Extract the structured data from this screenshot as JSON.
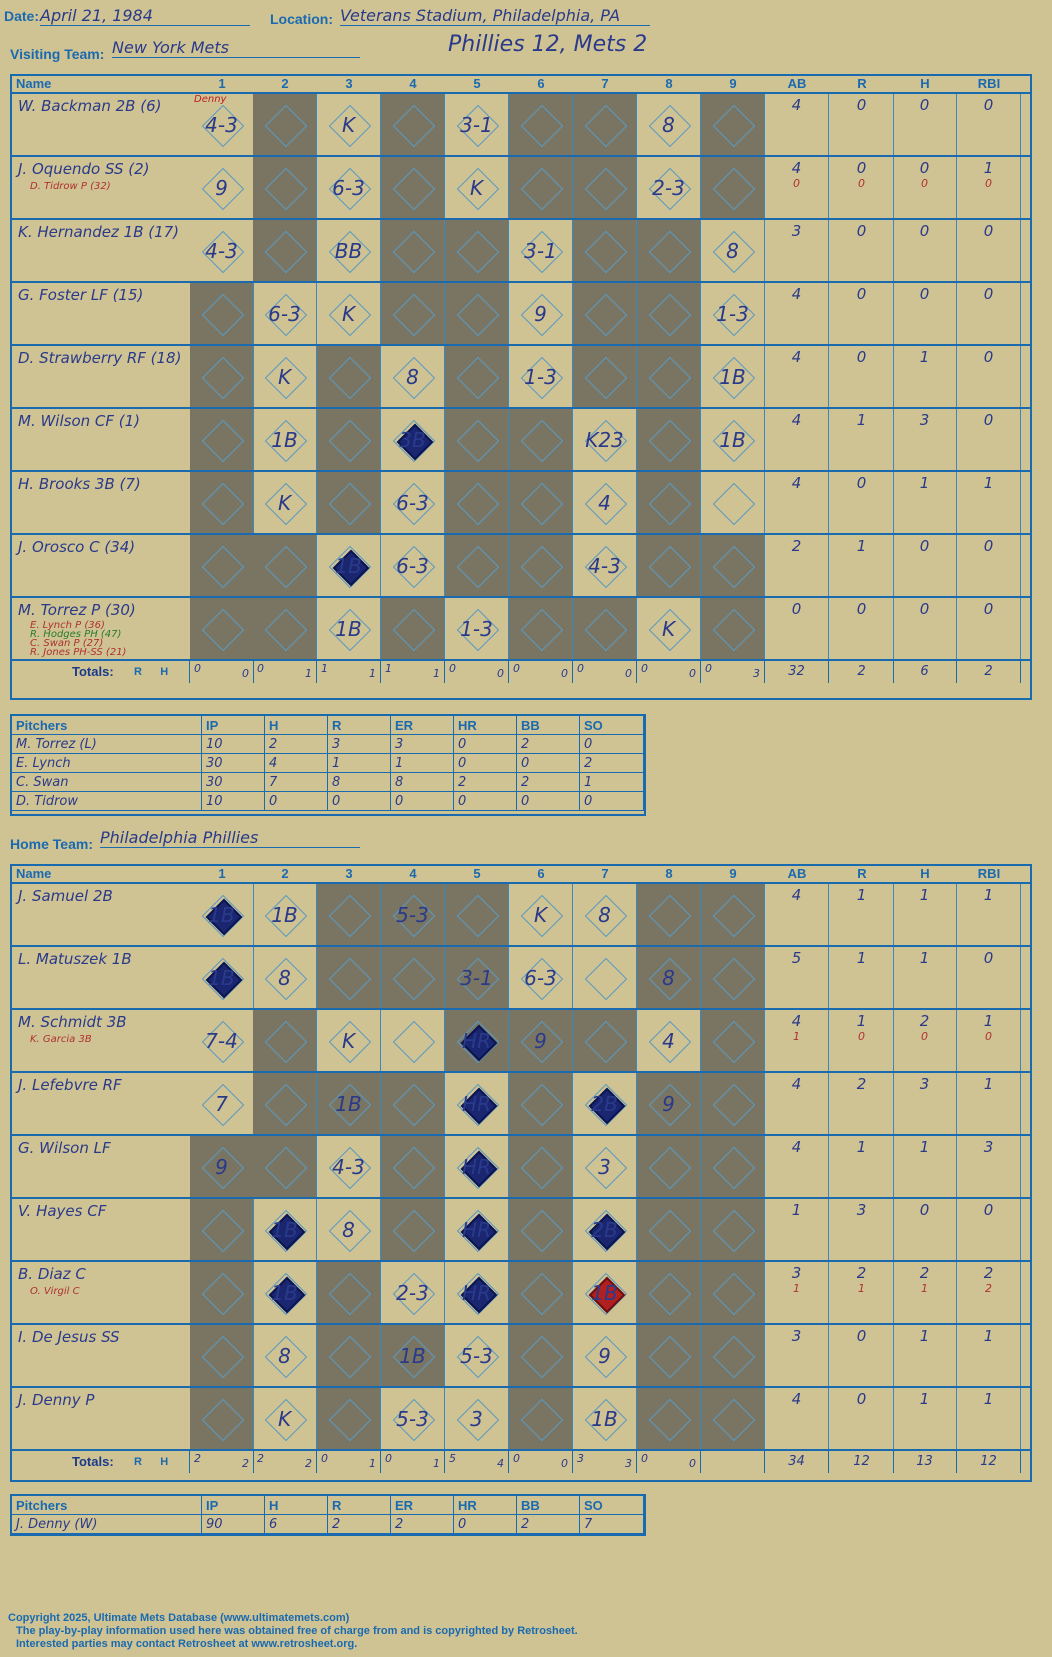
{
  "header": {
    "date_label": "Date:",
    "date": "April 21, 1984",
    "location_label": "Location:",
    "location": "Veterans Stadium, Philadelphia, PA",
    "visiting_label": "Visiting Team:",
    "visiting_team": "New York Mets",
    "home_label": "Home Team:",
    "home_team": "Philadelphia Phillies",
    "score": "Phillies 12, Mets 2"
  },
  "columns": {
    "name": "Name",
    "innings": [
      "1",
      "2",
      "3",
      "4",
      "5",
      "6",
      "7",
      "8",
      "9"
    ],
    "stats": [
      "AB",
      "R",
      "H",
      "RBI"
    ],
    "totals": "Totals:",
    "rh": "R      H"
  },
  "visitors": [
    {
      "name": "W. Backman 2B (6)",
      "cells": [
        "4-3",
        "",
        "K",
        "",
        "3-1",
        "",
        "",
        "8",
        ""
      ],
      "stats": [
        "4",
        "0",
        "0",
        "0"
      ],
      "notes": {
        "0": "Denny"
      }
    },
    {
      "name": "J. Oquendo SS (2)",
      "sub": "D. Tidrow P (32)",
      "cells": [
        "9",
        "",
        "6-3",
        "",
        "K",
        "",
        "",
        "2-3",
        ""
      ],
      "stats": [
        "4",
        "0",
        "0",
        "1"
      ],
      "stats2": [
        "0",
        "0",
        "0",
        "0"
      ]
    },
    {
      "name": "K. Hernandez 1B (17)",
      "cells": [
        "4-3",
        "",
        "BB",
        "",
        "",
        "3-1",
        "",
        "",
        "8"
      ],
      "stats": [
        "3",
        "0",
        "0",
        "0"
      ]
    },
    {
      "name": "G. Foster LF (15)",
      "cells": [
        "",
        "6-3",
        "K",
        "",
        "",
        "9",
        "",
        "",
        "1-3"
      ],
      "stats": [
        "4",
        "0",
        "0",
        "0"
      ]
    },
    {
      "name": "D. Strawberry RF (18)",
      "cells": [
        "",
        "K",
        "",
        "8",
        "",
        "1-3",
        "",
        "",
        "1B"
      ],
      "stats": [
        "4",
        "0",
        "1",
        "0"
      ]
    },
    {
      "name": "M. Wilson CF (1)",
      "cells": [
        "",
        "1B",
        "",
        "3B",
        "",
        "",
        "K23",
        "",
        "1B"
      ],
      "stats": [
        "4",
        "1",
        "3",
        "0"
      ]
    },
    {
      "name": "H. Brooks 3B (7)",
      "cells": [
        "",
        "K",
        "",
        "6-3",
        "",
        "",
        "4",
        "",
        ""
      ],
      "stats": [
        "4",
        "0",
        "1",
        "1"
      ]
    },
    {
      "name": "J. Orosco C (34)",
      "cells": [
        "",
        "",
        "1B",
        "6-3",
        "",
        "",
        "4-3",
        "",
        ""
      ],
      "stats": [
        "2",
        "1",
        "0",
        "0"
      ]
    },
    {
      "name": "M. Torrez P (30)",
      "subs": [
        "E. Lynch P (36)",
        "R. Hodges PH (47)",
        "C. Swan P (27)",
        "R. Jones PH-SS (21)"
      ],
      "cells": [
        "",
        "",
        "1B",
        "",
        "1-3",
        "",
        "",
        "K",
        ""
      ],
      "stats": [
        "0",
        "0",
        "0",
        "0"
      ]
    }
  ],
  "visitor_totals": [
    [
      "0",
      "0"
    ],
    [
      "0",
      "1"
    ],
    [
      "1",
      "1"
    ],
    [
      "1",
      "1"
    ],
    [
      "0",
      "0"
    ],
    [
      "0",
      "0"
    ],
    [
      "0",
      "0"
    ],
    [
      "0",
      "0"
    ],
    [
      "0",
      "3"
    ]
  ],
  "visitor_sum": [
    "32",
    "2",
    "6",
    "2"
  ],
  "visitor_pitchers": {
    "head": [
      "Pitchers",
      "IP",
      "H",
      "R",
      "ER",
      "HR",
      "BB",
      "SO"
    ],
    "rows": [
      [
        "M. Torrez (L)",
        "10",
        "2",
        "3",
        "3",
        "0",
        "2",
        "0"
      ],
      [
        "E. Lynch",
        "30",
        "4",
        "1",
        "1",
        "0",
        "0",
        "2"
      ],
      [
        "C. Swan",
        "30",
        "7",
        "8",
        "8",
        "2",
        "2",
        "1"
      ],
      [
        "D. Tidrow",
        "10",
        "0",
        "0",
        "0",
        "0",
        "0",
        "0"
      ]
    ]
  },
  "home": [
    {
      "name": "J. Samuel 2B",
      "cells": [
        "1B",
        "1B",
        "",
        "5-3",
        "",
        "K",
        "8",
        "",
        ""
      ],
      "stats": [
        "4",
        "1",
        "1",
        "1"
      ]
    },
    {
      "name": "L. Matuszek 1B",
      "cells": [
        "1B",
        "8",
        "",
        "",
        "3-1",
        "6-3",
        "",
        "8",
        ""
      ],
      "stats": [
        "5",
        "1",
        "1",
        "0"
      ]
    },
    {
      "name": "M. Schmidt 3B",
      "sub": "K. Garcia 3B",
      "cells": [
        "7-4",
        "",
        "K",
        "",
        "HR",
        "9",
        "",
        "4",
        ""
      ],
      "stats": [
        "4",
        "1",
        "2",
        "1"
      ],
      "stats2": [
        "1",
        "0",
        "0",
        "0"
      ]
    },
    {
      "name": "J. Lefebvre RF",
      "cells": [
        "7",
        "",
        "1B",
        "",
        "HR",
        "",
        "2B",
        "9",
        ""
      ],
      "stats": [
        "4",
        "2",
        "3",
        "1"
      ]
    },
    {
      "name": "G. Wilson LF",
      "cells": [
        "9",
        "",
        "4-3",
        "",
        "HR",
        "",
        "3",
        "",
        ""
      ],
      "stats": [
        "4",
        "1",
        "1",
        "3"
      ]
    },
    {
      "name": "V. Hayes CF",
      "cells": [
        "",
        "1B",
        "8",
        "",
        "HR",
        "",
        "2B",
        "",
        ""
      ],
      "stats": [
        "1",
        "3",
        "0",
        "0"
      ]
    },
    {
      "name": "B. Diaz C",
      "sub": "O. Virgil C",
      "cells": [
        "",
        "1B",
        "",
        "2-3",
        "HR",
        "",
        "1B",
        "",
        ""
      ],
      "stats": [
        "3",
        "2",
        "2",
        "2"
      ],
      "stats2": [
        "1",
        "1",
        "1",
        "2"
      ]
    },
    {
      "name": "I. De Jesus SS",
      "cells": [
        "",
        "8",
        "",
        "1B",
        "5-3",
        "",
        "9",
        "",
        ""
      ],
      "stats": [
        "3",
        "0",
        "1",
        "1"
      ]
    },
    {
      "name": "J. Denny P",
      "cells": [
        "",
        "K",
        "",
        "5-3",
        "3",
        "",
        "1B",
        "",
        ""
      ],
      "stats": [
        "4",
        "0",
        "1",
        "1"
      ]
    }
  ],
  "home_totals": [
    [
      "2",
      "2"
    ],
    [
      "2",
      "2"
    ],
    [
      "0",
      "1"
    ],
    [
      "0",
      "1"
    ],
    [
      "5",
      "4"
    ],
    [
      "0",
      "0"
    ],
    [
      "3",
      "3"
    ],
    [
      "0",
      "0"
    ],
    [
      "",
      ""
    ]
  ],
  "home_sum": [
    "34",
    "12",
    "13",
    "12"
  ],
  "home_pitchers": {
    "head": [
      "Pitchers",
      "IP",
      "H",
      "R",
      "ER",
      "HR",
      "BB",
      "SO"
    ],
    "rows": [
      [
        "J. Denny (W)",
        "90",
        "6",
        "2",
        "2",
        "0",
        "2",
        "7"
      ]
    ]
  },
  "footer": [
    "Copyright 2025, Ultimate Mets Database (www.ultimatemets.com)",
    "The play-by-play information used here was obtained free of charge from and is copyrighted by Retrosheet.",
    "Interested parties may contact Retrosheet at www.retrosheet.org."
  ],
  "colors": {
    "paper": "#cfc394",
    "grid": "#1a6ab0",
    "dark_cell": "#7a7563",
    "run_marker": "#1a2670",
    "sub_run_marker": "#b02020"
  }
}
